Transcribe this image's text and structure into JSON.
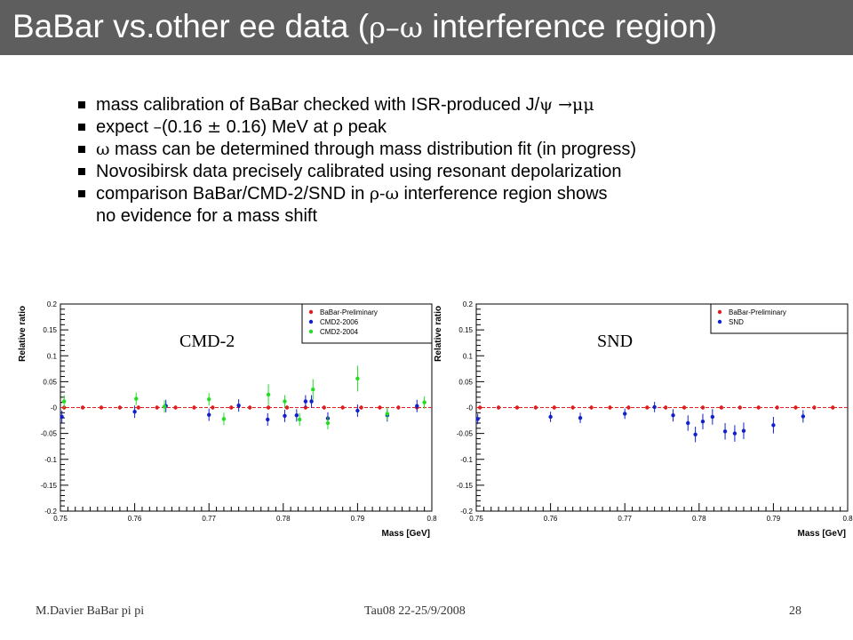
{
  "slide": {
    "title_pre": "BaBar vs.other ee data (",
    "title_greek": "ρ–ω",
    "title_post": " interference region)",
    "bullets": [
      {
        "a": "mass calibration of BaBar checked with ISR-produced J/",
        "s1": "ψ →μμ",
        "b": "",
        "s2": "",
        "c": ""
      },
      {
        "a": "expect ",
        "s1": "–",
        "b": "(0.16 ",
        "s2": "±",
        "c": " 0.16) MeV at ρ peak"
      },
      {
        "a": "",
        "s1": "ω",
        "b": " mass can be determined through mass distribution fit (in progress)",
        "s2": "",
        "c": ""
      },
      {
        "a": "Novosibirsk data precisely calibrated using resonant depolarization",
        "s1": "",
        "b": "",
        "s2": "",
        "c": ""
      },
      {
        "a": "comparison BaBar/CMD-2/SND in ",
        "s1": "ρ-ω",
        "b": " interference region shows",
        "s2": "",
        "c": ""
      }
    ],
    "bullet_cont": "no evidence for a mass shift"
  },
  "footer": {
    "author": "M.Davier    BaBar pi pi",
    "conf": "Tau08  22-25/9/2008",
    "page": "28"
  },
  "chart_data": [
    {
      "type": "scatter",
      "annotation": "CMD-2",
      "xlabel": "Mass  [GeV]",
      "ylabel": "Relative ratio",
      "xlim": [
        0.75,
        0.8
      ],
      "ylim": [
        -0.2,
        0.2
      ],
      "xticks": [
        "0.75",
        "0.76",
        "0.77",
        "0.78",
        "0.79",
        "0.8"
      ],
      "yticks": [
        "-0.2",
        "-0.15",
        "-0.1",
        "-0.05",
        "-0",
        "0.05",
        "0.1",
        "0.15",
        "0.2"
      ],
      "legend_position": "top-right",
      "series": [
        {
          "name": "BaBar-Preliminary",
          "color": "#e02020",
          "err": 0.004,
          "x": [
            0.7505,
            0.753,
            0.7555,
            0.758,
            0.7605,
            0.763,
            0.7655,
            0.768,
            0.7705,
            0.773,
            0.7755,
            0.778,
            0.7805,
            0.783,
            0.7855,
            0.788,
            0.7905,
            0.793,
            0.7955,
            0.798
          ],
          "y": [
            0,
            0,
            0,
            0,
            0,
            0,
            0,
            0,
            0,
            0,
            0,
            0,
            0,
            0,
            0,
            0,
            0,
            0,
            0,
            0
          ]
        },
        {
          "name": "CMD2-2006",
          "color": "#1020cc",
          "x": [
            0.7502,
            0.76,
            0.7642,
            0.77,
            0.774,
            0.7779,
            0.7802,
            0.7818,
            0.783,
            0.7838,
            0.786,
            0.79,
            0.794,
            0.798
          ],
          "y": [
            -0.018,
            -0.008,
            0.003,
            -0.014,
            0.004,
            -0.023,
            -0.016,
            -0.015,
            0.012,
            0.012,
            -0.021,
            -0.006,
            -0.015,
            0.003
          ],
          "yerr": [
            0.012,
            0.012,
            0.012,
            0.012,
            0.012,
            0.012,
            0.012,
            0.012,
            0.012,
            0.012,
            0.012,
            0.012,
            0.012,
            0.012
          ]
        },
        {
          "name": "CMD2-2004",
          "color": "#22dd22",
          "x": [
            0.7505,
            0.7602,
            0.764,
            0.77,
            0.772,
            0.778,
            0.7802,
            0.7822,
            0.784,
            0.786,
            0.79,
            0.794,
            0.799
          ],
          "y": [
            0.012,
            0.017,
            0.002,
            0.016,
            -0.022,
            0.025,
            0.012,
            -0.023,
            0.035,
            -0.03,
            0.056,
            -0.012,
            0.01
          ],
          "yerr": [
            0.012,
            0.012,
            0.012,
            0.012,
            0.012,
            0.02,
            0.012,
            0.012,
            0.02,
            0.012,
            0.025,
            0.012,
            0.012
          ]
        }
      ]
    },
    {
      "type": "scatter",
      "annotation": "SND",
      "xlabel": "Mass  [GeV]",
      "ylabel": "Relative ratio",
      "xlim": [
        0.75,
        0.8
      ],
      "ylim": [
        -0.2,
        0.2
      ],
      "xticks": [
        "0.75",
        "0.76",
        "0.77",
        "0.78",
        "0.79",
        "0.8"
      ],
      "yticks": [
        "-0.2",
        "-0.15",
        "-0.1",
        "-0.05",
        "-0",
        "0.05",
        "0.1",
        "0.15",
        "0.2"
      ],
      "legend_position": "top-right",
      "series": [
        {
          "name": "BaBar-Preliminary",
          "color": "#e02020",
          "err": 0.004,
          "x": [
            0.7505,
            0.753,
            0.7555,
            0.758,
            0.7605,
            0.763,
            0.7655,
            0.768,
            0.7705,
            0.773,
            0.7755,
            0.778,
            0.7805,
            0.783,
            0.7855,
            0.788,
            0.7905,
            0.793,
            0.7955,
            0.798
          ],
          "y": [
            0,
            0,
            0,
            0,
            0,
            0,
            0,
            0,
            0,
            0,
            0,
            0,
            0,
            0,
            0,
            0,
            0,
            0,
            0,
            0
          ]
        },
        {
          "name": "SND",
          "color": "#1020cc",
          "x": [
            0.7502,
            0.76,
            0.764,
            0.77,
            0.774,
            0.7765,
            0.7785,
            0.7795,
            0.7805,
            0.7818,
            0.7835,
            0.7848,
            0.786,
            0.79,
            0.794
          ],
          "y": [
            -0.022,
            -0.018,
            -0.02,
            -0.012,
            0.001,
            -0.015,
            -0.03,
            -0.052,
            -0.027,
            -0.018,
            -0.046,
            -0.05,
            -0.045,
            -0.034,
            -0.017
          ],
          "yerr": [
            0.01,
            0.01,
            0.01,
            0.01,
            0.01,
            0.012,
            0.015,
            0.015,
            0.015,
            0.015,
            0.016,
            0.016,
            0.016,
            0.016,
            0.012
          ]
        }
      ]
    }
  ]
}
